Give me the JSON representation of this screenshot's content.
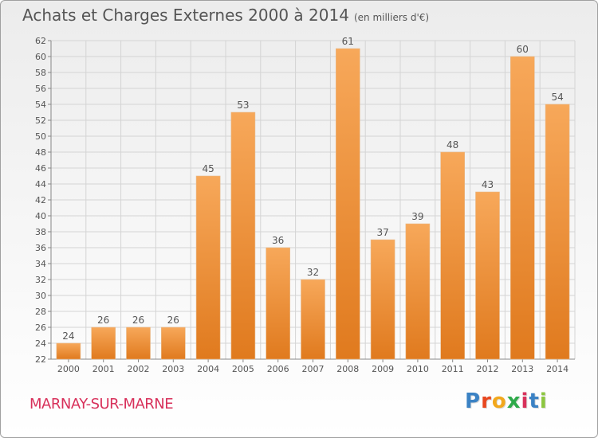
{
  "title": "Achats et Charges Externes 2000 à 2014",
  "unit": "(en milliers d'€)",
  "place": "MARNAY-SUR-MARNE",
  "brand": "Proxiti",
  "colors": {
    "bar_light": "#f7a85a",
    "bar_dark": "#e07a1e",
    "place": "#d8315b",
    "text": "#555555",
    "grid": "#d4d4d4"
  },
  "chart_data": {
    "type": "bar",
    "categories": [
      "2000",
      "2001",
      "2002",
      "2003",
      "2004",
      "2005",
      "2006",
      "2007",
      "2008",
      "2009",
      "2010",
      "2011",
      "2012",
      "2013",
      "2014"
    ],
    "values": [
      24,
      26,
      26,
      26,
      45,
      53,
      36,
      32,
      61,
      37,
      39,
      48,
      43,
      60,
      54
    ],
    "ylim": [
      22,
      62
    ],
    "yticks": [
      22,
      24,
      26,
      28,
      30,
      32,
      34,
      36,
      38,
      40,
      42,
      44,
      46,
      48,
      50,
      52,
      54,
      56,
      58,
      60,
      62
    ],
    "grid": true,
    "data_labels": true
  }
}
